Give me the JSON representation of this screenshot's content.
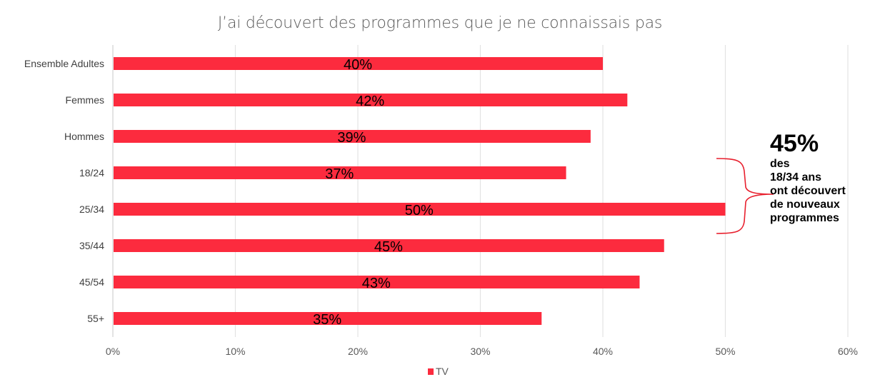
{
  "chart_data": {
    "type": "bar",
    "orientation": "horizontal",
    "title": "J’ai découvert des programmes que je ne connaissais pas",
    "categories": [
      "Ensemble Adultes",
      "Femmes",
      "Hommes",
      "18/24",
      "25/34",
      "35/44",
      "45/54",
      "55+"
    ],
    "series": [
      {
        "name": "TV",
        "values": [
          40,
          42,
          39,
          37,
          50,
          45,
          43,
          35
        ],
        "color": "#fc2b3e"
      }
    ],
    "data_labels": [
      "40%",
      "42%",
      "39%",
      "37%",
      "50%",
      "45%",
      "43%",
      "35%"
    ],
    "xlabel": "",
    "ylabel": "",
    "xlim": [
      0,
      60
    ],
    "x_ticks": [
      0,
      10,
      20,
      30,
      40,
      50,
      60
    ],
    "x_tick_labels": [
      "0%",
      "10%",
      "20%",
      "30%",
      "40%",
      "50%",
      "60%"
    ],
    "grid": true,
    "legend": {
      "entries": [
        "TV"
      ],
      "position": "bottom"
    },
    "annotation": {
      "headline": "45%",
      "lines": [
        "des",
        "18/34 ans",
        "ont découvert",
        "de nouveaux",
        "programmes"
      ],
      "brace_color": "#e8202e",
      "brace_spans_categories": [
        "18/24",
        "25/34"
      ]
    }
  }
}
